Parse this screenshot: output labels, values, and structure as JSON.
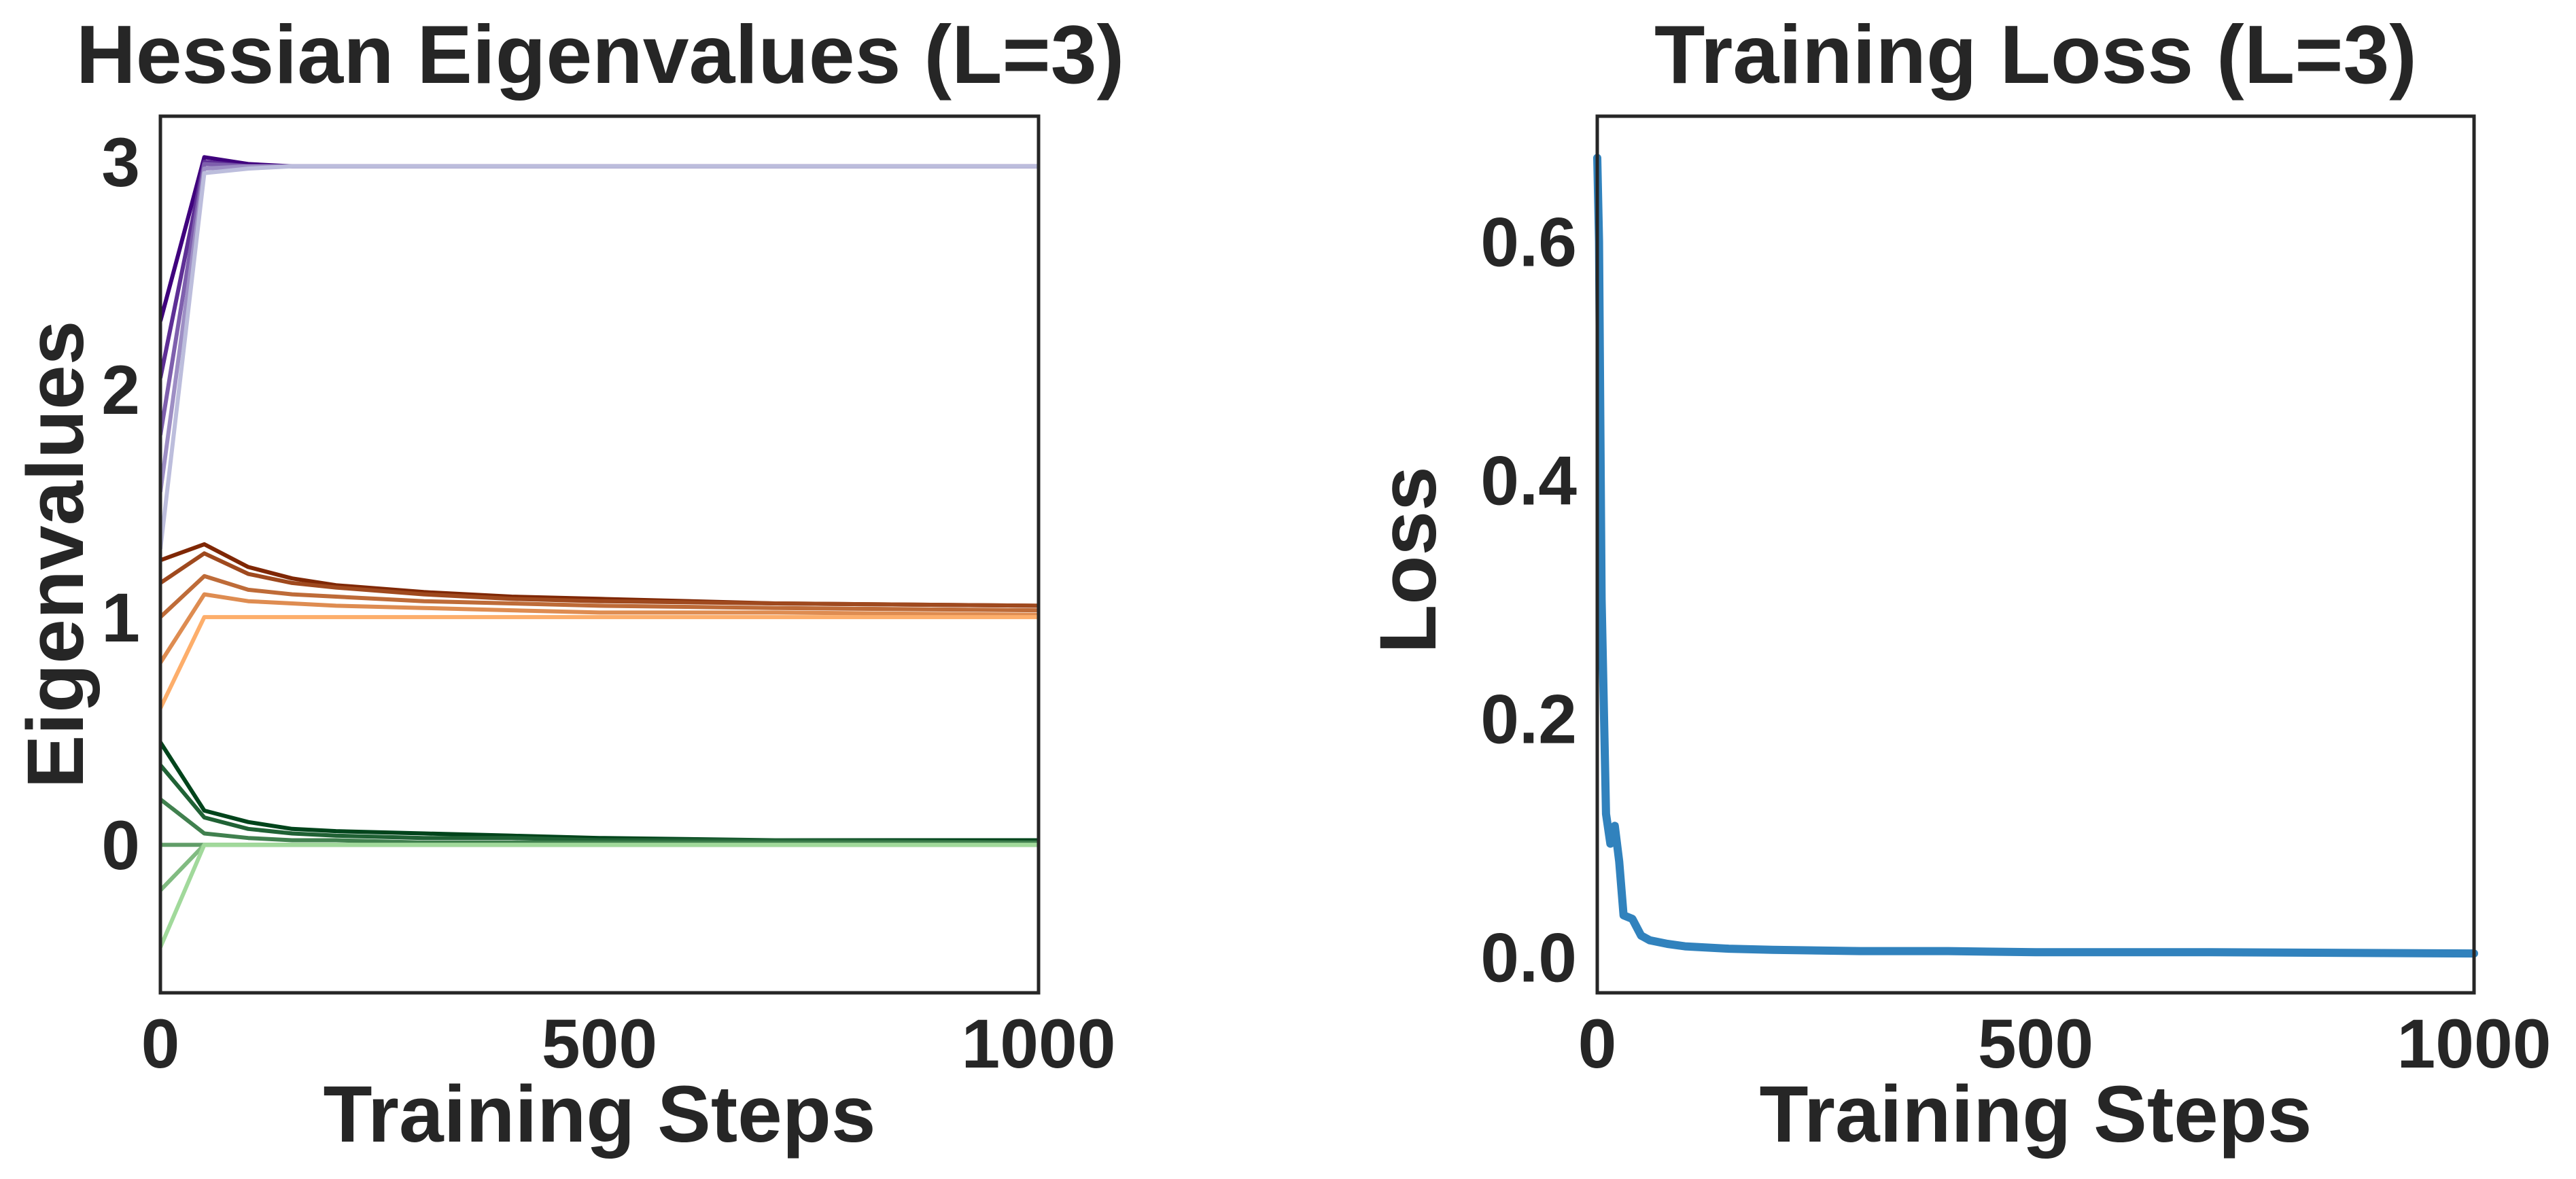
{
  "chart_data": [
    {
      "type": "line",
      "title": "Hessian Eigenvalues (L=3)",
      "xlabel": "Training Steps",
      "ylabel": "Eigenvalues",
      "xlim": [
        0,
        1000
      ],
      "ylim": [
        -0.65,
        3.2
      ],
      "xticks": [
        0,
        500,
        1000
      ],
      "yticks": [
        0,
        1,
        2,
        3
      ],
      "xtick_labels": [
        "0",
        "500",
        "1000"
      ],
      "ytick_labels": [
        "0",
        "1",
        "2",
        "3"
      ],
      "grid": false,
      "legend": "none",
      "x": [
        0,
        50,
        100,
        150,
        200,
        300,
        400,
        500,
        700,
        1000
      ],
      "groups": [
        {
          "color_dark": "#3f007d",
          "color_light": "#bcbddc",
          "series": [
            [
              2.3,
              3.02,
              2.99,
              2.98,
              2.98,
              2.98,
              2.98,
              2.98,
              2.98,
              2.98
            ],
            [
              2.05,
              3.0,
              2.98,
              2.98,
              2.98,
              2.98,
              2.98,
              2.98,
              2.98,
              2.98
            ],
            [
              1.8,
              2.99,
              2.98,
              2.98,
              2.98,
              2.98,
              2.98,
              2.98,
              2.98,
              2.98
            ],
            [
              1.55,
              2.97,
              2.98,
              2.98,
              2.98,
              2.98,
              2.98,
              2.98,
              2.98,
              2.98
            ],
            [
              1.3,
              2.95,
              2.97,
              2.98,
              2.98,
              2.98,
              2.98,
              2.98,
              2.98,
              2.98
            ]
          ]
        },
        {
          "color_dark": "#7f2704",
          "color_light": "#fdae6b",
          "series": [
            [
              1.25,
              1.32,
              1.22,
              1.17,
              1.14,
              1.11,
              1.09,
              1.08,
              1.06,
              1.05
            ],
            [
              1.15,
              1.28,
              1.19,
              1.15,
              1.13,
              1.1,
              1.08,
              1.07,
              1.06,
              1.05
            ],
            [
              1.0,
              1.18,
              1.12,
              1.1,
              1.09,
              1.07,
              1.06,
              1.05,
              1.04,
              1.03
            ],
            [
              0.8,
              1.1,
              1.07,
              1.06,
              1.05,
              1.04,
              1.03,
              1.02,
              1.02,
              1.01
            ],
            [
              0.6,
              1.0,
              1.0,
              1.0,
              1.0,
              1.0,
              1.0,
              1.0,
              1.0,
              1.0
            ]
          ]
        },
        {
          "color_dark": "#00441b",
          "color_light": "#a1d99b",
          "series": [
            [
              0.45,
              0.15,
              0.1,
              0.07,
              0.06,
              0.05,
              0.04,
              0.03,
              0.02,
              0.02
            ],
            [
              0.35,
              0.12,
              0.07,
              0.05,
              0.04,
              0.03,
              0.03,
              0.02,
              0.02,
              0.01
            ],
            [
              0.2,
              0.05,
              0.03,
              0.02,
              0.02,
              0.01,
              0.01,
              0.01,
              0.01,
              0.01
            ],
            [
              0.0,
              0.0,
              0.0,
              0.0,
              0.0,
              0.0,
              0.0,
              0.0,
              0.0,
              0.0
            ],
            [
              -0.2,
              0.0,
              0.0,
              0.0,
              0.0,
              0.0,
              0.0,
              0.0,
              0.0,
              0.0
            ],
            [
              -0.45,
              0.0,
              0.0,
              0.0,
              0.0,
              0.0,
              0.0,
              0.0,
              0.0,
              0.0
            ]
          ]
        }
      ]
    },
    {
      "type": "line",
      "title": "Training Loss (L=3)",
      "xlabel": "Training Steps",
      "ylabel": "Loss",
      "xlim": [
        0,
        1000
      ],
      "ylim": [
        -0.03,
        0.705
      ],
      "xticks": [
        0,
        500,
        1000
      ],
      "yticks": [
        0.0,
        0.2,
        0.4,
        0.6
      ],
      "xtick_labels": [
        "0",
        "500",
        "1000"
      ],
      "ytick_labels": [
        "0.0",
        "0.2",
        "0.4",
        "0.6"
      ],
      "grid": false,
      "legend": "none",
      "color": "#3182bd",
      "x": [
        0,
        2,
        5,
        10,
        15,
        20,
        25,
        30,
        40,
        50,
        60,
        80,
        100,
        150,
        200,
        300,
        400,
        500,
        700,
        1000
      ],
      "values": [
        0.67,
        0.6,
        0.3,
        0.12,
        0.095,
        0.11,
        0.08,
        0.035,
        0.032,
        0.018,
        0.014,
        0.011,
        0.009,
        0.007,
        0.006,
        0.005,
        0.005,
        0.004,
        0.004,
        0.003
      ]
    }
  ]
}
